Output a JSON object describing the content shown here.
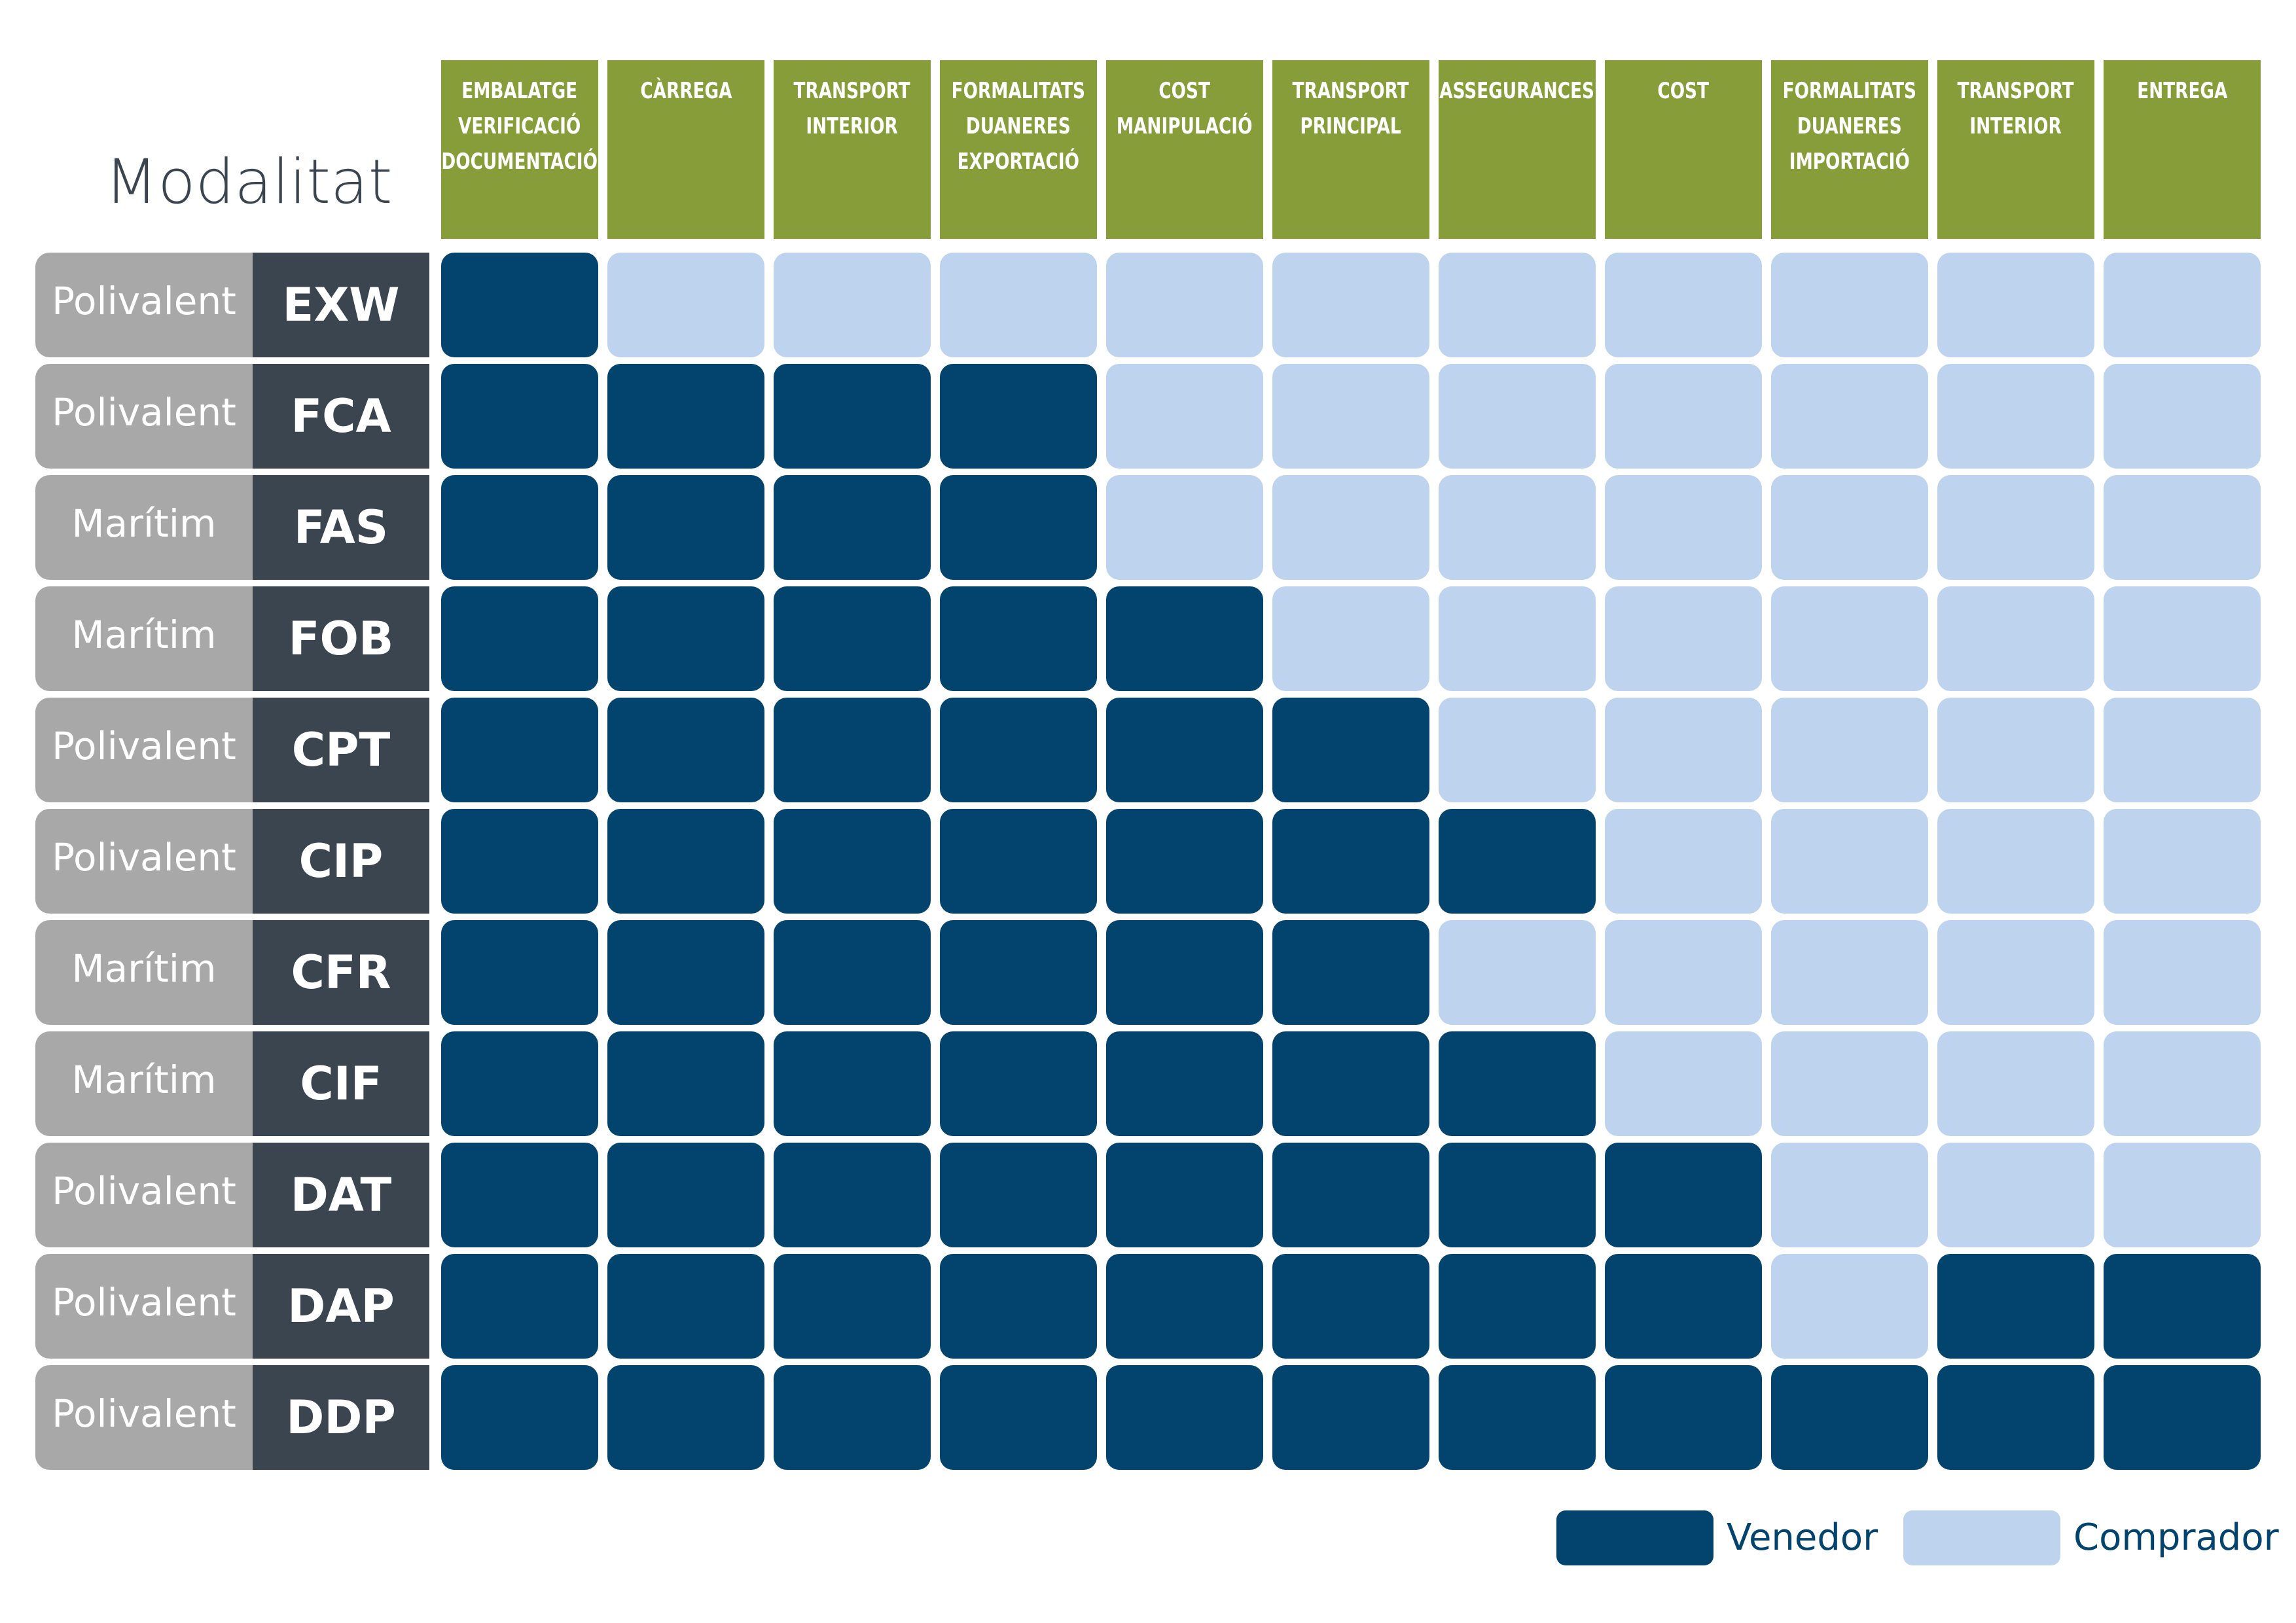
{
  "title": "Modalitat",
  "columns": [
    "EMBALATGE\nVERIFICACIÓ\nDOCUMENTACIÓ",
    "CÀRREGA",
    "TRANSPORT\nINTERIOR",
    "FORMALITATS\nDUANERES\nEXPORTACIÓ",
    "COST\nMANIPULACIÓ",
    "TRANSPORT\nPRINCIPAL",
    "ASSEGURANCES",
    "COST",
    "FORMALITATS\nDUANERES\nIMPORTACIÓ",
    "TRANSPORT\nINTERIOR",
    "ENTREGA"
  ],
  "rows": [
    {
      "modalitat": "Polivalent",
      "code": "EXW",
      "cells": "VCCCCCCCCCC"
    },
    {
      "modalitat": "Polivalent",
      "code": "FCA",
      "cells": "VVVVCCCCCCC"
    },
    {
      "modalitat": "Marítim",
      "code": "FAS",
      "cells": "VVVVCCCCCCC"
    },
    {
      "modalitat": "Marítim",
      "code": "FOB",
      "cells": "VVVVVCCCCCC"
    },
    {
      "modalitat": "Polivalent",
      "code": "CPT",
      "cells": "VVVVVVCCCCC"
    },
    {
      "modalitat": "Polivalent",
      "code": "CIP",
      "cells": "VVVVVVVCCCC"
    },
    {
      "modalitat": "Marítim",
      "code": "CFR",
      "cells": "VVVVVVCCCCC"
    },
    {
      "modalitat": "Marítim",
      "code": "CIF",
      "cells": "VVVVVVVCCCC"
    },
    {
      "modalitat": "Polivalent",
      "code": "DAT",
      "cells": "VVVVVVVVCCC"
    },
    {
      "modalitat": "Polivalent",
      "code": "DAP",
      "cells": "VVVVVVVVCVV"
    },
    {
      "modalitat": "Polivalent",
      "code": "DDP",
      "cells": "VVVVVVVVVVV"
    }
  ],
  "legend": [
    {
      "key": "V",
      "label": "Venedor",
      "color": "#03446e"
    },
    {
      "key": "C",
      "label": "Comprador",
      "color": "#bed3ee"
    }
  ],
  "colors": {
    "header": "#879d3a",
    "modalitat_cell": "#a8a8a8",
    "code_cell": "#3a4550",
    "seller": "#03446e",
    "buyer": "#bed3ee",
    "title": "#3a4550"
  }
}
